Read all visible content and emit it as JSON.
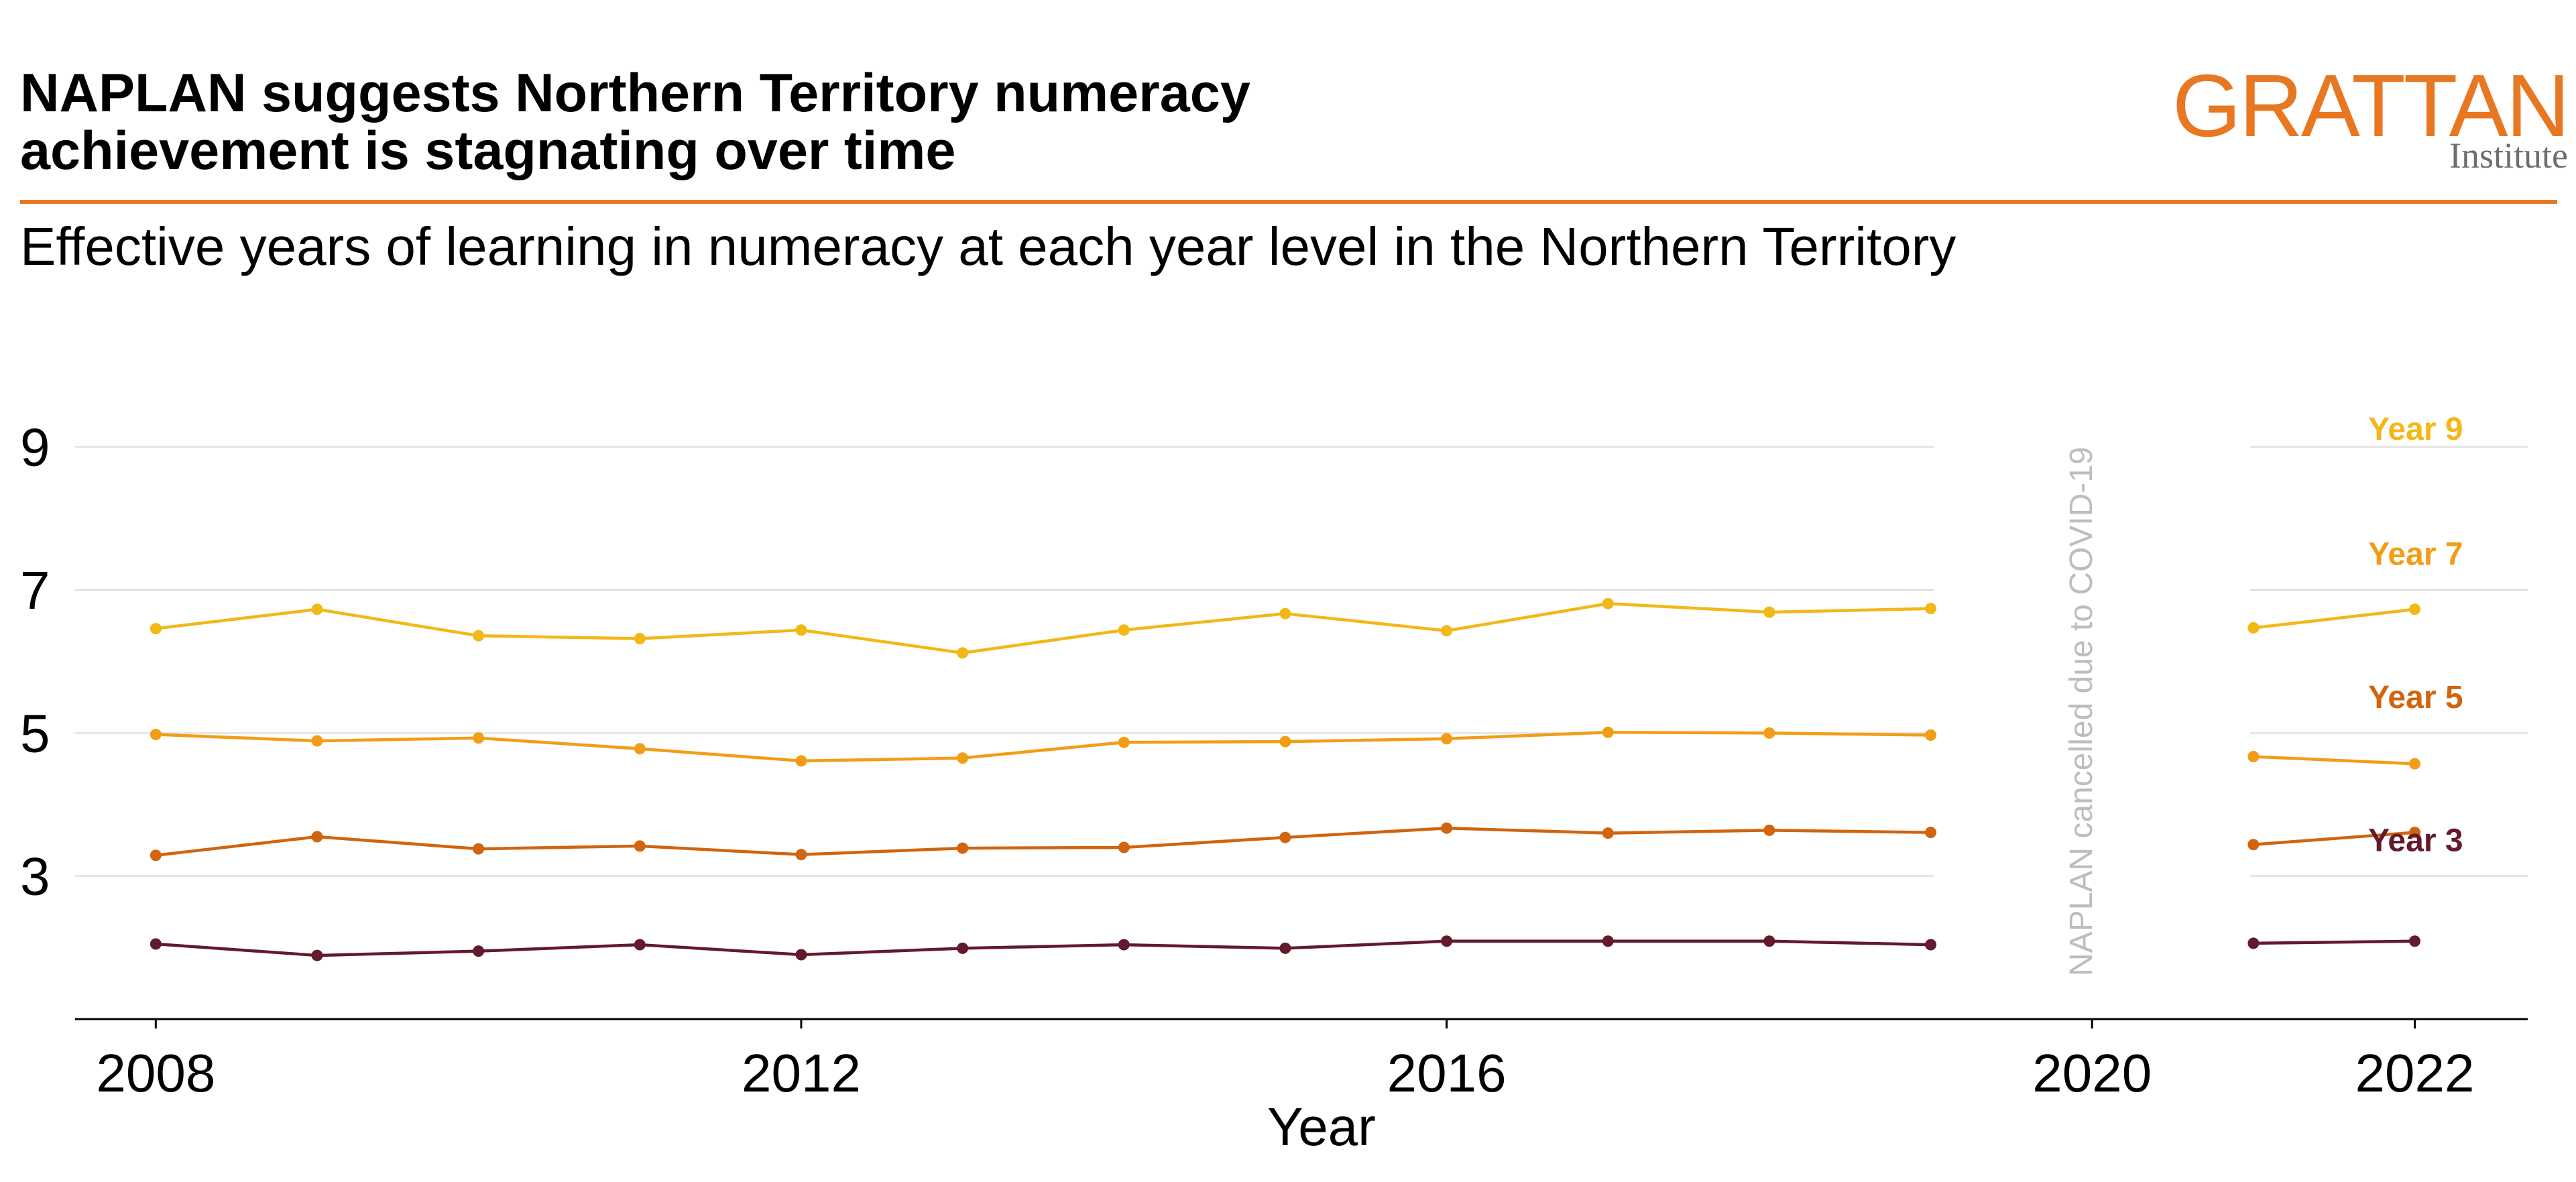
{
  "header": {
    "title_line1": "NAPLAN suggests Northern Territory numeracy",
    "title_line2": "achievement is stagnating over time",
    "subtitle": "Effective years of learning in numeracy at each year level in the Northern Territory",
    "accent_color": "#e87722"
  },
  "logo": {
    "word": "GRATTAN",
    "sub": "Institute",
    "color": "#e87722",
    "sub_color": "#6d6e71"
  },
  "chart_data": {
    "type": "line",
    "title": "NAPLAN suggests Northern Territory numeracy achievement is stagnating over time",
    "subtitle": "Effective years of learning in numeracy at each year level in the Northern Territory",
    "xlabel": "Year",
    "ylabel": "",
    "xlim": [
      2007.5,
      2022.7
    ],
    "ylim": [
      1.0,
      10.0
    ],
    "x_ticks": [
      2008,
      2012,
      2016,
      2020,
      2022
    ],
    "y_ticks": [
      3,
      5,
      7,
      9
    ],
    "grid": "horizontal",
    "legend": "direct labels at right",
    "annotation": {
      "text": "NAPLAN cancelled due to COVID-19",
      "x": 2020
    },
    "series": [
      {
        "name": "Year 9",
        "color": "#f2b817",
        "segments": [
          {
            "x": [
              2008,
              2009,
              2010,
              2011,
              2012,
              2013,
              2014,
              2015,
              2016,
              2017,
              2018,
              2019
            ],
            "y": [
              6.46,
              6.73,
              6.36,
              6.32,
              6.44,
              6.12,
              6.44,
              6.67,
              6.43,
              6.81,
              6.69,
              6.74
            ]
          },
          {
            "x": [
              2021,
              2022
            ],
            "y": [
              6.47,
              6.73
            ]
          }
        ]
      },
      {
        "name": "Year 7",
        "color": "#f29d16",
        "segments": [
          {
            "x": [
              2008,
              2009,
              2010,
              2011,
              2012,
              2013,
              2014,
              2015,
              2016,
              2017,
              2018,
              2019
            ],
            "y": [
              4.98,
              4.89,
              4.93,
              4.78,
              4.61,
              4.65,
              4.87,
              4.88,
              4.92,
              5.01,
              5.0,
              4.97
            ]
          },
          {
            "x": [
              2021,
              2022
            ],
            "y": [
              4.67,
              4.57
            ]
          }
        ]
      },
      {
        "name": "Year 5",
        "color": "#d1640e",
        "segments": [
          {
            "x": [
              2008,
              2009,
              2010,
              2011,
              2012,
              2013,
              2014,
              2015,
              2016,
              2017,
              2018,
              2019
            ],
            "y": [
              3.29,
              3.55,
              3.38,
              3.42,
              3.3,
              3.39,
              3.4,
              3.54,
              3.67,
              3.6,
              3.64,
              3.61
            ]
          },
          {
            "x": [
              2021,
              2022
            ],
            "y": [
              3.44,
              3.61
            ]
          }
        ]
      },
      {
        "name": "Year 3",
        "color": "#621a2c",
        "segments": [
          {
            "x": [
              2008,
              2009,
              2010,
              2011,
              2012,
              2013,
              2014,
              2015,
              2016,
              2017,
              2018,
              2019
            ],
            "y": [
              2.05,
              1.89,
              1.95,
              2.04,
              1.9,
              1.99,
              2.04,
              1.99,
              2.09,
              2.09,
              2.09,
              2.04
            ]
          },
          {
            "x": [
              2021,
              2022
            ],
            "y": [
              2.06,
              2.09
            ]
          }
        ]
      }
    ]
  }
}
